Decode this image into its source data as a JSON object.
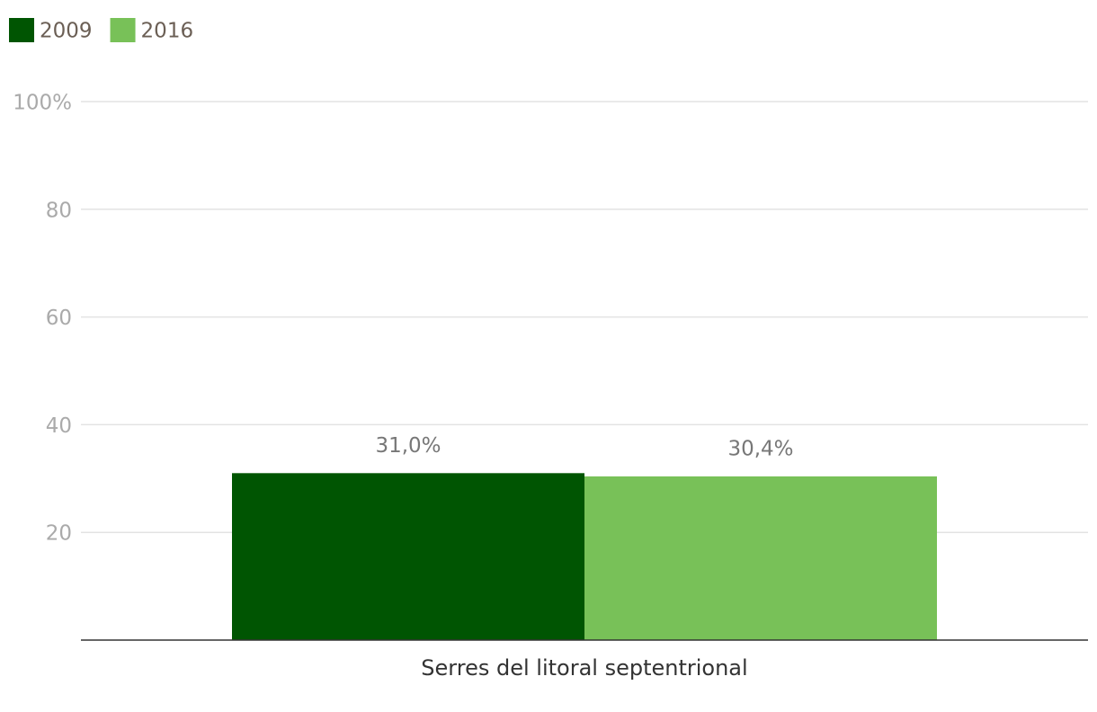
{
  "chart_data": {
    "type": "bar",
    "categories": [
      "Serres del litoral septentrional"
    ],
    "series": [
      {
        "name": "2009",
        "color": "#005502",
        "values": [
          31.0
        ],
        "value_labels": [
          "31,0%"
        ]
      },
      {
        "name": "2016",
        "color": "#78c158",
        "values": [
          30.4
        ],
        "value_labels": [
          "30,4%"
        ]
      }
    ],
    "ylim": [
      0,
      100
    ],
    "yticks": [
      20,
      40,
      60,
      80,
      {
        "value": 100,
        "label": "100%"
      }
    ],
    "grid": true,
    "legend": "top-left"
  }
}
